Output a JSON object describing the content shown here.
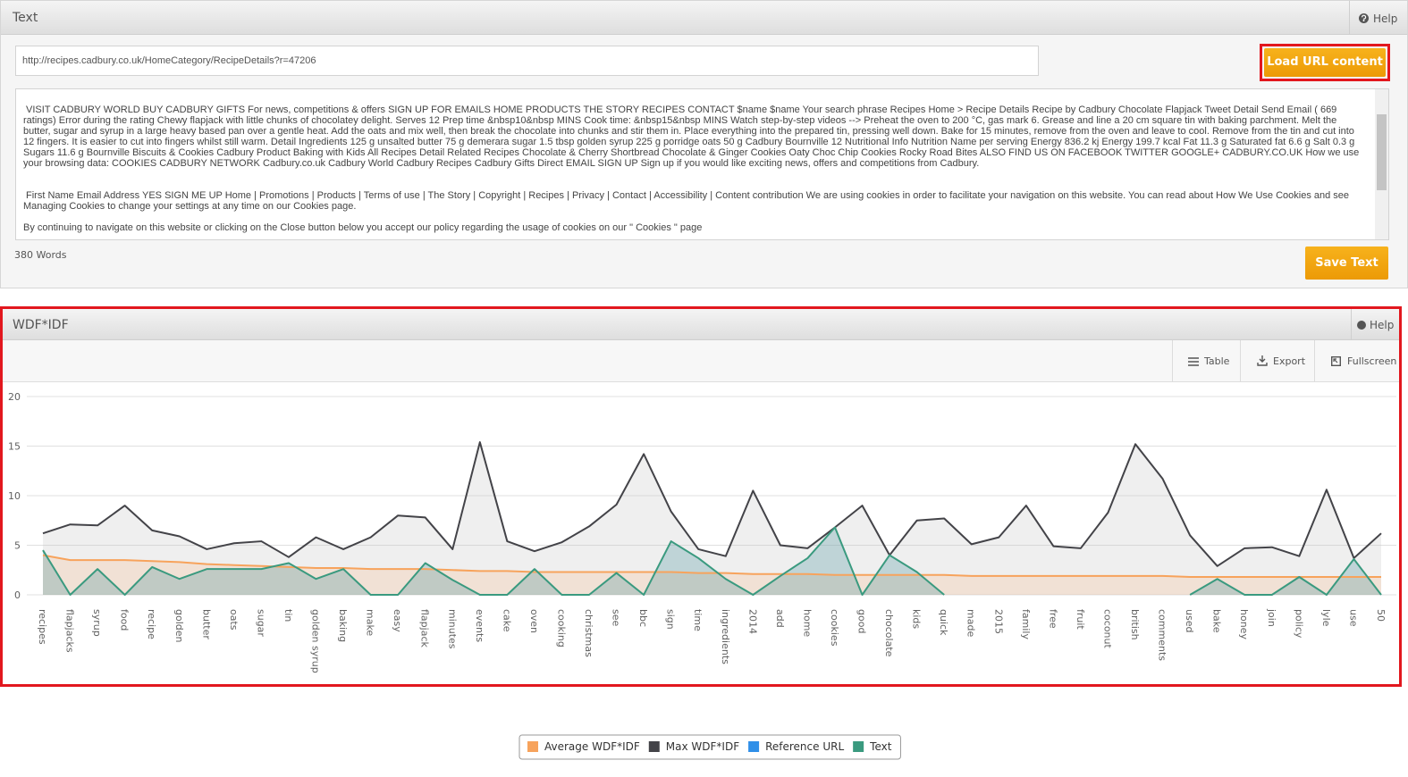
{
  "text_panel": {
    "title": "Text",
    "help": "Help",
    "url": "http://recipes.cadbury.co.uk/HomeCategory/RecipeDetails?r=47206",
    "load_button": "Load URL content",
    "content": [
      "VISIT CADBURY WORLD BUY CADBURY GIFTS For news, competitions & offers SIGN UP FOR EMAILS HOME PRODUCTS THE STORY RECIPES CONTACT $name $name Your search phrase Recipes Home > Recipe Details Recipe by Cadbury Chocolate Flapjack Tweet Detail Send Email ( 669 ratings) Error during the rating Chewy flapjack with little chunks of chocolatey delight. Serves 12 Prep time &nbsp10&nbsp MINS Cook time: &nbsp15&nbsp MINS Watch step-by-step videos --> Preheat the oven to 200 °C, gas mark 6. Grease and line a 20 cm square tin with baking parchment. Melt the butter, sugar and syrup in a large heavy based pan over a gentle heat. Add the oats and mix well, then break the chocolate into chunks and stir them in. Place everything into the prepared tin, pressing well down. Bake for 15 minutes, remove from the oven and leave to cool. Remove from the tin and cut into 12 fingers. It is easier to cut into fingers whilst still warm. Detail Ingredients 125 g unsalted butter 75 g demerara sugar 1.5 tbsp golden syrup 225 g porridge oats 50 g Cadbury Bournville 12 Nutritional Info Nutrition Name per serving Energy 836.2 kj Energy 199.7 kcal Fat 11.3 g Saturated fat 6.6 g Salt 0.3 g Sugars 11.6 g Bournville Biscuits & Cookies Cadbury Product Baking with Kids All Recipes Detail Related Recipes Chocolate & Cherry Shortbread Chocolate & Ginger Cookies Oaty Choc Chip Cookies Rocky Road Bites ALSO FIND US ON FACEBOOK TWITTER GOOGLE+ CADBURY.CO.UK How we use your browsing data: COOKIES CADBURY NETWORK Cadbury.co.uk Cadbury World Cadbury Recipes Cadbury Gifts Direct EMAIL SIGN UP Sign up if you would like exciting news, offers and competitions from Cadbury.",
      "First Name Email Address YES SIGN ME UP Home | Promotions | Products | Terms of use | The Story | Copyright | Recipes | Privacy | Contact | Accessibility | Content contribution We are using cookies in order to facilitate your navigation on this website. You can read about How We Use Cookies and see Managing Cookies to change your settings at any time on our Cookies page.",
      "By continuing to navigate on this website or clicking on the Close button below you accept our policy regarding the usage of cookies on our \" Cookies \" page"
    ],
    "word_count": "380 Words",
    "save_button": "Save Text"
  },
  "wdf_panel": {
    "title": "WDF*IDF",
    "help": "Help",
    "toolbar": [
      "Table",
      "Export",
      "Fullscreen"
    ]
  },
  "chart_data": {
    "type": "area",
    "categories": [
      "recipes",
      "flapjacks",
      "syrup",
      "food",
      "recipe",
      "golden",
      "butter",
      "oats",
      "sugar",
      "tin",
      "golden syrup",
      "baking",
      "make",
      "easy",
      "flapjack",
      "minutes",
      "events",
      "cake",
      "oven",
      "cooking",
      "christmas",
      "see",
      "bbc",
      "sign",
      "time",
      "ingredients",
      "2014",
      "add",
      "home",
      "cookies",
      "good",
      "chocolate",
      "kids",
      "quick",
      "made",
      "2015",
      "family",
      "free",
      "fruit",
      "coconut",
      "british",
      "comments",
      "used",
      "bake",
      "honey",
      "join",
      "policy",
      "lyle",
      "use",
      "50"
    ],
    "series": [
      {
        "name": "Average WDF*IDF",
        "color": "#f7a35c",
        "values": [
          4.0,
          3.5,
          3.5,
          3.5,
          3.4,
          3.3,
          3.1,
          3.0,
          2.9,
          2.8,
          2.7,
          2.7,
          2.6,
          2.6,
          2.6,
          2.5,
          2.4,
          2.4,
          2.3,
          2.3,
          2.3,
          2.3,
          2.3,
          2.3,
          2.2,
          2.2,
          2.1,
          2.1,
          2.1,
          2.0,
          2.0,
          2.0,
          2.0,
          2.0,
          1.9,
          1.9,
          1.9,
          1.9,
          1.9,
          1.9,
          1.9,
          1.9,
          1.8,
          1.8,
          1.8,
          1.8,
          1.8,
          1.8,
          1.8,
          1.8
        ]
      },
      {
        "name": "Max WDF*IDF",
        "color": "#434348",
        "values": [
          6.2,
          7.1,
          7.0,
          9.0,
          6.5,
          5.9,
          4.6,
          5.2,
          5.4,
          3.8,
          5.8,
          4.6,
          5.8,
          8.0,
          7.8,
          4.6,
          15.4,
          5.4,
          4.4,
          5.3,
          6.9,
          9.1,
          14.2,
          8.4,
          4.6,
          3.9,
          10.5,
          5.0,
          4.7,
          6.8,
          9.0,
          4.0,
          7.5,
          7.7,
          5.1,
          5.8,
          9.0,
          4.9,
          4.7,
          8.3,
          15.2,
          11.7,
          6.0,
          2.9,
          4.7,
          4.8,
          3.9,
          10.6,
          3.7,
          6.2
        ]
      },
      {
        "name": "Reference URL",
        "color": "#2f8fe8",
        "values": [
          null,
          null,
          null,
          null,
          null,
          null,
          null,
          null,
          null,
          null,
          null,
          null,
          null,
          null,
          null,
          null,
          null,
          null,
          null,
          null,
          null,
          null,
          null,
          null,
          null,
          null,
          null,
          null,
          null,
          null,
          null,
          null,
          null,
          null,
          null,
          null,
          null,
          null,
          null,
          null,
          null,
          null,
          null,
          null,
          null,
          null,
          null,
          null,
          null,
          null
        ]
      },
      {
        "name": "Text",
        "color": "#3a9a7f",
        "values": [
          4.5,
          0,
          2.6,
          0,
          2.8,
          1.6,
          2.6,
          2.6,
          2.6,
          3.2,
          1.6,
          2.6,
          0,
          0,
          3.2,
          1.5,
          0,
          0,
          2.6,
          0,
          0,
          2.2,
          0,
          5.4,
          3.7,
          1.6,
          0,
          1.9,
          3.7,
          6.8,
          0,
          4.0,
          2.3,
          0,
          null,
          null,
          null,
          null,
          null,
          null,
          null,
          null,
          0,
          1.6,
          0,
          0,
          1.8,
          0,
          3.6,
          0
        ]
      }
    ],
    "ylim": [
      0,
      20
    ],
    "yticks": [
      0,
      5,
      10,
      15,
      20
    ],
    "grid": true,
    "legend": "bottom"
  }
}
